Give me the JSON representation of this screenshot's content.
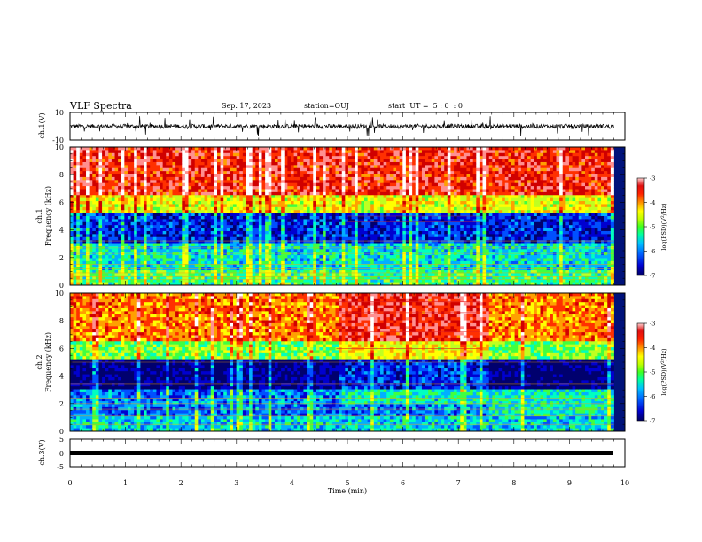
{
  "header": {
    "title": "VLF Spectra",
    "date": "Sep. 17, 2023",
    "station": "station=OUJ",
    "start": "start  UT =  5 : 0  : 0"
  },
  "chart_data": [
    {
      "type": "line",
      "panel": "waveform-ch1",
      "ylabel": "ch.1(V)",
      "yticks": [
        "10",
        "-10"
      ],
      "ylim": [
        -10,
        10
      ],
      "xlim": [
        0,
        10
      ],
      "description_values": {
        "baseline": 0,
        "typical_amplitude": 2,
        "spike_amplitude": 8
      }
    },
    {
      "type": "heatmap",
      "panel": "spectrogram-ch1",
      "ylabel": "ch.1\nFrequency (kHz)",
      "ylabel_line1": "ch.1",
      "ylabel_line2": "Frequency (kHz)",
      "yticks": [
        "0",
        "2",
        "4",
        "6",
        "8",
        "10"
      ],
      "ylim": [
        0,
        10
      ],
      "xlim": [
        0,
        10
      ],
      "colorbar": {
        "label": "log(PSD)(V²/Hz)",
        "ticks": [
          "-3",
          "-4",
          "-5",
          "-6",
          "-7"
        ],
        "range": [
          -7,
          -3
        ]
      }
    },
    {
      "type": "heatmap",
      "panel": "spectrogram-ch2",
      "ylabel_line1": "ch.2",
      "ylabel_line2": "Frequency (kHz)",
      "yticks": [
        "0",
        "2",
        "4",
        "6",
        "8",
        "10"
      ],
      "ylim": [
        0,
        10
      ],
      "xlim": [
        0,
        10
      ],
      "colorbar": {
        "label": "log(PSD)(V²/Hz)",
        "ticks": [
          "-3",
          "-4",
          "-5",
          "-6",
          "-7"
        ],
        "range": [
          -7,
          -3
        ]
      }
    },
    {
      "type": "line",
      "panel": "waveform-ch3",
      "ylabel": "ch.3(V)",
      "yticks": [
        "5",
        "0",
        "-5"
      ],
      "ylim": [
        -5,
        5
      ],
      "xlim": [
        0,
        10
      ],
      "description_values": {
        "constant_level": -1
      }
    }
  ],
  "xaxis": {
    "label": "Time (min)",
    "ticks": [
      "0",
      "1",
      "2",
      "3",
      "4",
      "5",
      "6",
      "7",
      "8",
      "9",
      "10"
    ],
    "data_end": 9.8
  },
  "colorbar_label_parts": {
    "prefix": "log(PSD)(V",
    "sup": "2",
    "suffix": "/Hz)"
  },
  "colors": {
    "colormap": [
      "#00006e",
      "#0000d0",
      "#0050ff",
      "#00b0ff",
      "#00ffc0",
      "#40ff40",
      "#c0ff20",
      "#ffff00",
      "#ffa000",
      "#ff3000",
      "#d00000",
      "#ff9090",
      "#ffffff"
    ]
  }
}
